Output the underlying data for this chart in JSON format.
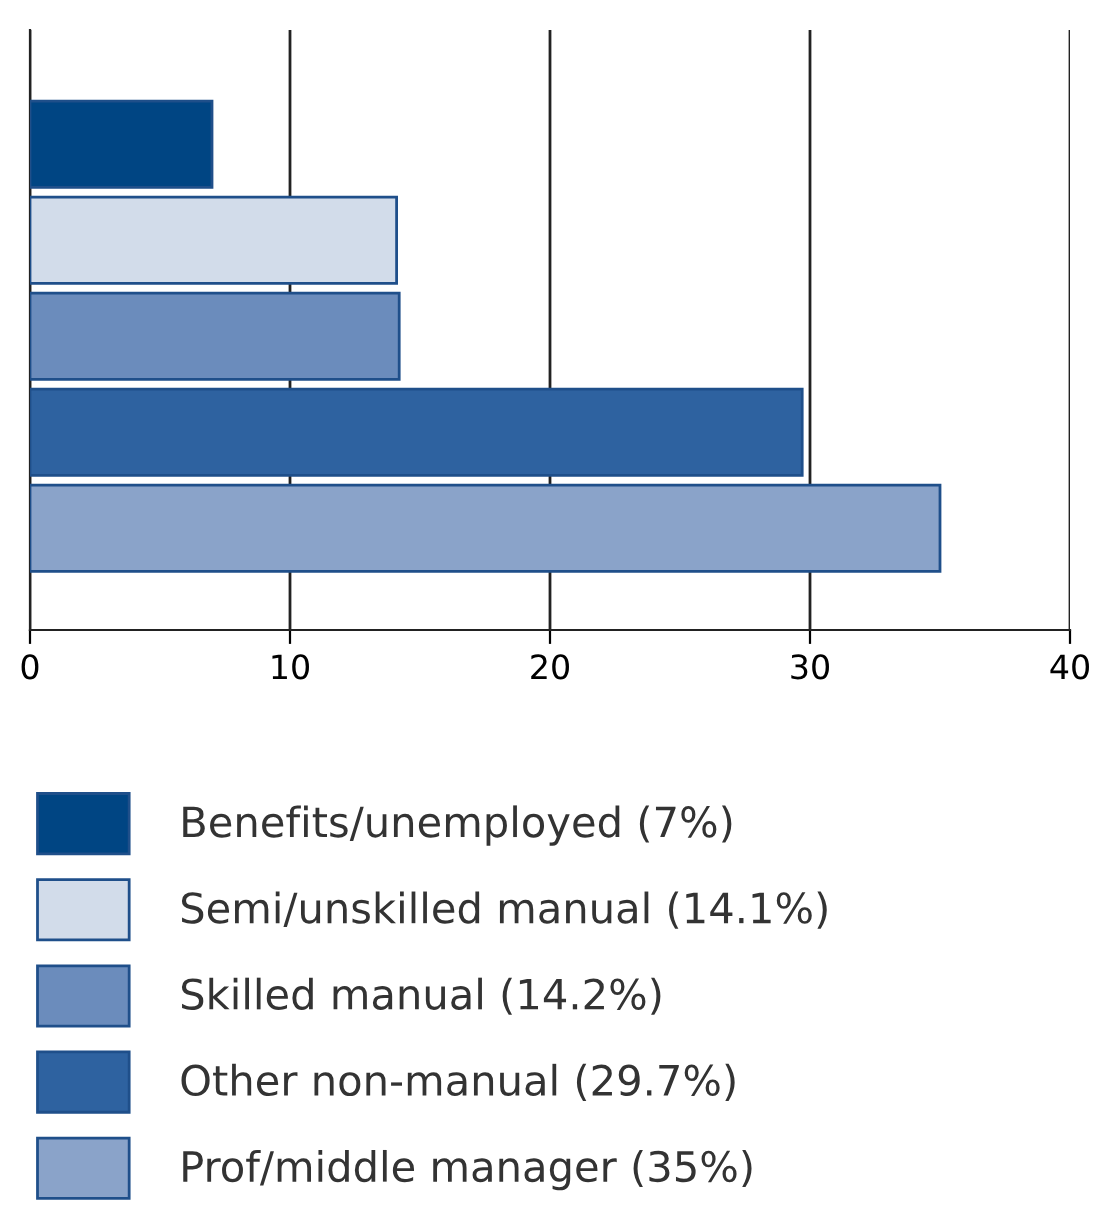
{
  "chart_data": {
    "type": "bar",
    "orientation": "horizontal",
    "stacked": true,
    "categories": [
      null,
      null,
      null,
      null,
      null
    ],
    "series": [
      {
        "name": "Benefits/unemployed (7%)",
        "color": "#004583",
        "values": [
          7,
          null,
          null,
          null,
          null
        ]
      },
      {
        "name": "Semi/unskilled manual (14.1%)",
        "color": "#d2dcea",
        "values": [
          null,
          14.1,
          null,
          null,
          null
        ]
      },
      {
        "name": "Skilled manual (14.2%)",
        "color": "#6b8cbc",
        "values": [
          null,
          null,
          14.2,
          null,
          null
        ]
      },
      {
        "name": "Other non-manual (29.7%)",
        "color": "#2e62a0",
        "values": [
          null,
          null,
          null,
          29.7,
          null
        ]
      },
      {
        "name": "Prof/middle manager (35%)",
        "color": "#8aa3c9",
        "values": [
          null,
          null,
          null,
          null,
          35
        ]
      }
    ],
    "xlim": [
      0,
      40
    ],
    "xticks": [
      0,
      10,
      20,
      30,
      40
    ],
    "grid": "x",
    "legend": "bottom"
  }
}
